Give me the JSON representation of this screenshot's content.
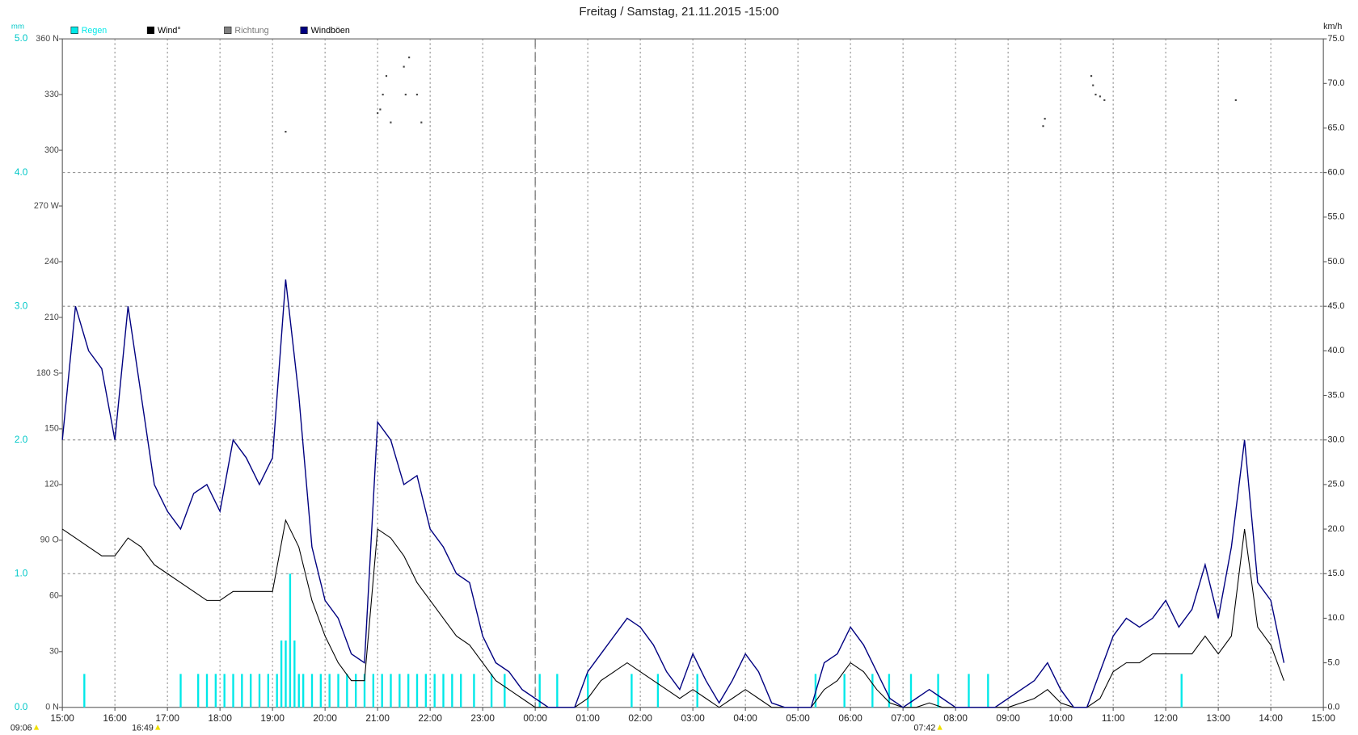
{
  "chart_data": {
    "type": "line",
    "title": "Freitag / Samstag, 21.11.2015  -15:00",
    "ylabel": "mm",
    "y2label": "km/h",
    "ylim": [
      0,
      5
    ],
    "yticks": [
      {
        "value": 0,
        "label": "0.0"
      },
      {
        "value": 1,
        "label": "1.0"
      },
      {
        "value": 2,
        "label": "2.0"
      },
      {
        "value": 3,
        "label": "3.0"
      },
      {
        "value": 4,
        "label": "4.0"
      },
      {
        "value": 5,
        "label": "5.0"
      }
    ],
    "y2lim": [
      0,
      75
    ],
    "y2ticks": [
      {
        "value": 0,
        "label": "0.0"
      },
      {
        "value": 5,
        "label": "5.0"
      },
      {
        "value": 10,
        "label": "10.0"
      },
      {
        "value": 15,
        "label": "15.0"
      },
      {
        "value": 20,
        "label": "20.0"
      },
      {
        "value": 25,
        "label": "25.0"
      },
      {
        "value": 30,
        "label": "30.0"
      },
      {
        "value": 35,
        "label": "35.0"
      },
      {
        "value": 40,
        "label": "40.0"
      },
      {
        "value": 45,
        "label": "45.0"
      },
      {
        "value": 50,
        "label": "50.0"
      },
      {
        "value": 55,
        "label": "55.0"
      },
      {
        "value": 60,
        "label": "60.0"
      },
      {
        "value": 65,
        "label": "65.0"
      },
      {
        "value": 70,
        "label": "70.0"
      },
      {
        "value": 75,
        "label": "75.0"
      }
    ],
    "y3lim": [
      0,
      360
    ],
    "y3ticks": [
      {
        "value": 0,
        "label": "0 N"
      },
      30,
      60,
      {
        "value": 90,
        "label": "90  O"
      },
      120,
      150,
      {
        "value": 180,
        "label": "180 S"
      },
      210,
      240,
      {
        "value": 270,
        "label": "270 W"
      },
      300,
      330,
      {
        "value": 360,
        "label": "360 N"
      }
    ],
    "xticks": [
      "15:00",
      "16:00",
      "17:00",
      "18:00",
      "19:00",
      "20:00",
      "21:00",
      "22:00",
      "23:00",
      "00:00",
      "01:00",
      "02:00",
      "03:00",
      "04:00",
      "05:00",
      "06:00",
      "07:00",
      "08:00",
      "09:00",
      "10:00",
      "11:00",
      "12:00",
      "13:00",
      "14:00",
      "15:00"
    ],
    "day_divider": "00:00",
    "grid": true,
    "sun": [
      "09:06",
      "16:49",
      "07:42"
    ],
    "x": [
      "15:00",
      "15:15",
      "15:30",
      "15:45",
      "16:00",
      "16:15",
      "16:30",
      "16:45",
      "17:00",
      "17:15",
      "17:30",
      "17:45",
      "18:00",
      "18:15",
      "18:30",
      "18:45",
      "19:00",
      "19:15",
      "19:30",
      "19:45",
      "20:00",
      "20:15",
      "20:30",
      "20:45",
      "21:00",
      "21:15",
      "21:30",
      "21:45",
      "22:00",
      "22:15",
      "22:30",
      "22:45",
      "23:00",
      "23:15",
      "23:30",
      "23:45",
      "00:00",
      "00:15",
      "00:30",
      "00:45",
      "01:00",
      "01:15",
      "01:30",
      "01:45",
      "02:00",
      "02:15",
      "02:30",
      "02:45",
      "03:00",
      "03:15",
      "03:30",
      "03:45",
      "04:00",
      "04:15",
      "04:30",
      "04:45",
      "05:00",
      "05:15",
      "05:30",
      "05:45",
      "06:00",
      "06:15",
      "06:30",
      "06:45",
      "07:00",
      "07:15",
      "07:30",
      "07:45",
      "08:00",
      "08:15",
      "08:30",
      "08:45",
      "09:00",
      "09:15",
      "09:30",
      "09:45",
      "10:00",
      "10:15",
      "10:30",
      "10:45",
      "11:00",
      "11:15",
      "11:30",
      "11:45",
      "12:00",
      "12:15",
      "12:30",
      "12:45",
      "13:00",
      "13:15",
      "13:30",
      "13:45",
      "14:00",
      "14:15"
    ],
    "series": [
      {
        "name": "Regen",
        "color": "#00e8e8",
        "axis": "y",
        "kind": "bar",
        "x": [
          "15:25",
          "17:15",
          "17:35",
          "17:45",
          "17:55",
          "18:05",
          "18:15",
          "18:25",
          "18:35",
          "18:45",
          "18:55",
          "19:05",
          "19:10",
          "19:15",
          "19:20",
          "19:25",
          "19:30",
          "19:35",
          "19:45",
          "19:55",
          "20:05",
          "20:15",
          "20:25",
          "20:35",
          "20:45",
          "20:55",
          "21:05",
          "21:15",
          "21:25",
          "21:35",
          "21:45",
          "21:55",
          "22:05",
          "22:15",
          "22:25",
          "22:35",
          "22:50",
          "23:10",
          "23:25",
          "00:05",
          "00:25",
          "01:00",
          "01:50",
          "02:20",
          "03:05",
          "05:20",
          "05:53",
          "06:25",
          "06:44",
          "07:09",
          "07:40",
          "08:15",
          "08:37",
          "12:18"
        ],
        "values": [
          0.25,
          0.25,
          0.25,
          0.25,
          0.25,
          0.25,
          0.25,
          0.25,
          0.25,
          0.25,
          0.25,
          0.25,
          0.5,
          0.5,
          1.0,
          0.5,
          0.25,
          0.25,
          0.25,
          0.25,
          0.25,
          0.25,
          0.25,
          0.25,
          0.25,
          0.25,
          0.25,
          0.25,
          0.25,
          0.25,
          0.25,
          0.25,
          0.25,
          0.25,
          0.25,
          0.25,
          0.25,
          0.25,
          0.25,
          0.25,
          0.25,
          0.25,
          0.25,
          0.25,
          0.25,
          0.25,
          0.25,
          0.25,
          0.25,
          0.25,
          0.25,
          0.25,
          0.25,
          0.25
        ]
      },
      {
        "name": "Wind°",
        "color": "#000000",
        "axis": "y2",
        "kind": "line",
        "values": [
          20,
          19,
          18,
          17,
          17,
          19,
          18,
          16,
          15,
          14,
          13,
          12,
          12,
          13,
          13,
          13,
          13,
          21,
          18,
          12,
          8,
          5,
          3,
          3,
          20,
          19,
          17,
          14,
          12,
          10,
          8,
          7,
          5,
          3,
          2,
          1,
          0,
          0,
          0,
          0,
          1,
          3,
          4,
          5,
          4,
          3,
          2,
          1,
          2,
          1,
          0,
          1,
          2,
          1,
          0,
          0,
          0,
          0,
          2,
          3,
          5,
          4,
          2,
          0.5,
          0,
          0,
          0.5,
          0,
          0,
          0,
          0,
          0,
          0,
          0.5,
          1,
          2,
          0.5,
          0,
          0,
          1,
          4,
          5,
          5,
          6,
          6,
          6,
          6,
          8,
          6,
          8,
          20,
          9,
          7,
          3
        ]
      },
      {
        "name": "Richtung",
        "color": "#808080",
        "axis": "y3",
        "kind": "dot",
        "x": [
          "19:15",
          "21:00",
          "21:03",
          "21:06",
          "21:10",
          "21:15",
          "21:30",
          "21:32",
          "21:36",
          "21:45",
          "21:50",
          "09:40",
          "09:42",
          "10:35",
          "10:37",
          "10:40",
          "10:45",
          "10:50",
          "13:20"
        ],
        "values": [
          310,
          320,
          322,
          330,
          340,
          315,
          345,
          330,
          350,
          330,
          315,
          313,
          317,
          340,
          335,
          330,
          329,
          327,
          327
        ]
      },
      {
        "name": "Windböen",
        "color": "#000080",
        "axis": "y2",
        "kind": "line",
        "values": [
          30,
          45,
          40,
          38,
          30,
          45,
          35,
          25,
          22,
          20,
          24,
          25,
          22,
          30,
          28,
          25,
          28,
          48,
          35,
          18,
          12,
          10,
          6,
          5,
          32,
          30,
          25,
          26,
          20,
          18,
          15,
          14,
          8,
          5,
          4,
          2,
          1,
          0,
          0,
          0,
          4,
          6,
          8,
          10,
          9,
          7,
          4,
          2,
          6,
          3,
          0.5,
          3,
          6,
          4,
          0.5,
          0,
          0,
          0,
          5,
          6,
          9,
          7,
          4,
          1,
          0,
          1,
          2,
          1,
          0,
          0,
          0,
          0,
          1,
          2,
          3,
          5,
          2,
          0,
          0,
          4,
          8,
          10,
          9,
          10,
          12,
          9,
          11,
          16,
          10,
          18,
          30,
          14,
          12,
          5
        ]
      }
    ]
  }
}
